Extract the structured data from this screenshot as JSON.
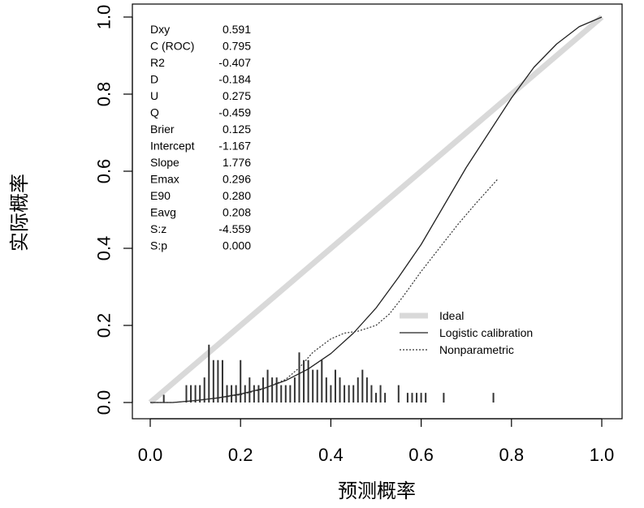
{
  "chart_data": {
    "type": "line",
    "title": "",
    "xlabel": "预测概率",
    "ylabel": "实际概率",
    "xlim": [
      0.0,
      1.0
    ],
    "ylim": [
      0.0,
      1.0
    ],
    "x_ticks": [
      "0.0",
      "0.2",
      "0.4",
      "0.6",
      "0.8",
      "1.0"
    ],
    "y_ticks": [
      "0.0",
      "0.2",
      "0.4",
      "0.6",
      "0.8",
      "1.0"
    ],
    "grid": false,
    "legend_position": "bottom-right",
    "stats": [
      {
        "label": "Dxy",
        "value": "0.591"
      },
      {
        "label": "C (ROC)",
        "value": "0.795"
      },
      {
        "label": "R2",
        "value": "-0.407"
      },
      {
        "label": "D",
        "value": "-0.184"
      },
      {
        "label": "U",
        "value": "0.275"
      },
      {
        "label": "Q",
        "value": "-0.459"
      },
      {
        "label": "Brier",
        "value": "0.125"
      },
      {
        "label": "Intercept",
        "value": "-1.167"
      },
      {
        "label": "Slope",
        "value": "1.776"
      },
      {
        "label": "Emax",
        "value": "0.296"
      },
      {
        "label": "E90",
        "value": "0.280"
      },
      {
        "label": "Eavg",
        "value": "0.208"
      },
      {
        "label": "S:z",
        "value": "-4.559"
      },
      {
        "label": "S:p",
        "value": "0.000"
      }
    ],
    "series": [
      {
        "name": "Ideal",
        "color": "#d9d9d9",
        "style": "thick-solid",
        "x": [
          0.0,
          1.0
        ],
        "y": [
          0.0,
          1.0
        ]
      },
      {
        "name": "Logistic calibration",
        "color": "#222222",
        "style": "solid",
        "x": [
          0.0,
          0.05,
          0.1,
          0.15,
          0.2,
          0.25,
          0.3,
          0.35,
          0.4,
          0.45,
          0.5,
          0.55,
          0.6,
          0.65,
          0.7,
          0.75,
          0.8,
          0.85,
          0.9,
          0.95,
          1.0
        ],
        "y": [
          0.0,
          0.0,
          0.005,
          0.012,
          0.022,
          0.036,
          0.057,
          0.087,
          0.127,
          0.18,
          0.245,
          0.325,
          0.41,
          0.51,
          0.61,
          0.7,
          0.79,
          0.87,
          0.93,
          0.975,
          1.0
        ]
      },
      {
        "name": "Nonparametric",
        "color": "#333333",
        "style": "dotted",
        "x": [
          0.0,
          0.05,
          0.1,
          0.15,
          0.2,
          0.25,
          0.3,
          0.33,
          0.36,
          0.4,
          0.43,
          0.46,
          0.5,
          0.53,
          0.56,
          0.6,
          0.64,
          0.68,
          0.72,
          0.77
        ],
        "y": [
          0.0,
          0.0,
          0.005,
          0.012,
          0.02,
          0.035,
          0.06,
          0.09,
          0.13,
          0.165,
          0.18,
          0.185,
          0.2,
          0.23,
          0.275,
          0.34,
          0.4,
          0.46,
          0.515,
          0.58
        ]
      }
    ],
    "distribution_spikes": {
      "x": [
        0.03,
        0.08,
        0.09,
        0.1,
        0.11,
        0.12,
        0.13,
        0.14,
        0.15,
        0.16,
        0.17,
        0.18,
        0.19,
        0.2,
        0.21,
        0.22,
        0.23,
        0.24,
        0.25,
        0.26,
        0.27,
        0.28,
        0.29,
        0.3,
        0.31,
        0.32,
        0.33,
        0.34,
        0.35,
        0.36,
        0.37,
        0.38,
        0.39,
        0.4,
        0.41,
        0.42,
        0.43,
        0.44,
        0.45,
        0.46,
        0.47,
        0.48,
        0.49,
        0.5,
        0.51,
        0.52,
        0.55,
        0.57,
        0.58,
        0.59,
        0.6,
        0.61,
        0.65,
        0.76
      ],
      "height": [
        0.02,
        0.045,
        0.045,
        0.045,
        0.045,
        0.065,
        0.15,
        0.11,
        0.11,
        0.11,
        0.045,
        0.045,
        0.045,
        0.11,
        0.045,
        0.065,
        0.045,
        0.045,
        0.065,
        0.085,
        0.065,
        0.065,
        0.045,
        0.045,
        0.045,
        0.065,
        0.13,
        0.11,
        0.11,
        0.085,
        0.085,
        0.11,
        0.065,
        0.045,
        0.085,
        0.065,
        0.045,
        0.045,
        0.045,
        0.065,
        0.085,
        0.065,
        0.045,
        0.025,
        0.045,
        0.025,
        0.045,
        0.025,
        0.025,
        0.025,
        0.025,
        0.025,
        0.025,
        0.025
      ]
    }
  }
}
